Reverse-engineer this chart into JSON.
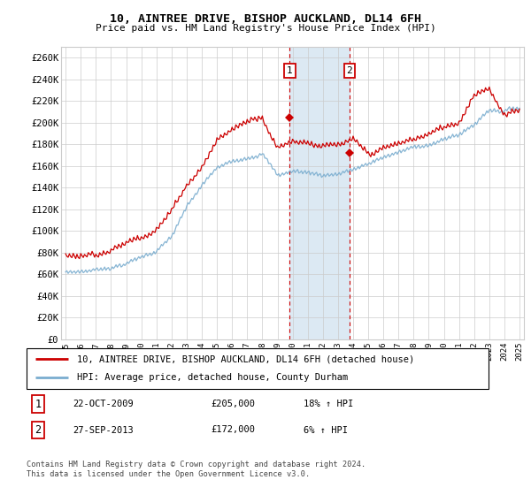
{
  "title": "10, AINTREE DRIVE, BISHOP AUCKLAND, DL14 6FH",
  "subtitle": "Price paid vs. HM Land Registry's House Price Index (HPI)",
  "legend_line1": "10, AINTREE DRIVE, BISHOP AUCKLAND, DL14 6FH (detached house)",
  "legend_line2": "HPI: Average price, detached house, County Durham",
  "footnote1": "Contains HM Land Registry data © Crown copyright and database right 2024.",
  "footnote2": "This data is licensed under the Open Government Licence v3.0.",
  "transaction1_date": "22-OCT-2009",
  "transaction1_price": "£205,000",
  "transaction1_hpi": "18% ↑ HPI",
  "transaction2_date": "27-SEP-2013",
  "transaction2_price": "£172,000",
  "transaction2_hpi": "6% ↑ HPI",
  "transaction1_x": 2009.81,
  "transaction1_y": 205000,
  "transaction2_x": 2013.75,
  "transaction2_y": 172000,
  "red_color": "#cc0000",
  "blue_color": "#7aadcf",
  "shade_color": "#dce9f3",
  "grid_color": "#cccccc",
  "bg_color": "#ffffff",
  "ylim_min": 0,
  "ylim_max": 270000,
  "yticks": [
    0,
    20000,
    40000,
    60000,
    80000,
    100000,
    120000,
    140000,
    160000,
    180000,
    200000,
    220000,
    240000,
    260000
  ],
  "xlim_min": 1994.7,
  "xlim_max": 2025.3
}
